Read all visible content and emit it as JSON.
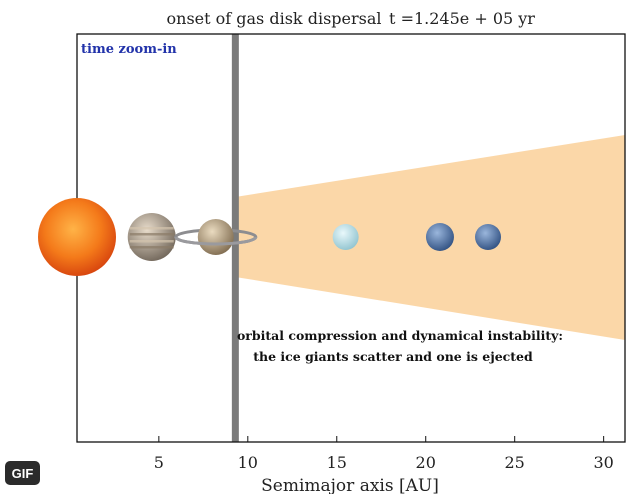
{
  "header": {
    "title_left": "onset of gas disk dispersal",
    "title_right": "t =1.245e + 05 yr"
  },
  "badge": {
    "label": "GIF"
  },
  "panel": {
    "zoom_label": "time zoom-in"
  },
  "annotation": {
    "line1": "orbital compression and dynamical instability:",
    "line2": "the ice giants scatter and one is ejected"
  },
  "chart_data": {
    "type": "scatter",
    "xlabel": "Semimajor axis [AU]",
    "xlim": [
      0.4,
      31.2
    ],
    "xticks": [
      5,
      10,
      15,
      20,
      25,
      30
    ],
    "xtick_labels": [
      "5",
      "10",
      "15",
      "20",
      "25",
      "30"
    ],
    "grid": false,
    "bodies": [
      {
        "name": "Sun",
        "x": 0.4,
        "color": "#f06a10"
      },
      {
        "name": "Jupiter",
        "x": 4.6,
        "color": "#b8a48c"
      },
      {
        "name": "Saturn",
        "x": 8.2,
        "color": "#c9ad86"
      },
      {
        "name": "Uranus",
        "x": 15.5,
        "color": "#bfe3ea"
      },
      {
        "name": "Neptune",
        "x": 20.8,
        "color": "#5b7fb0"
      },
      {
        "name": "Ice giant",
        "x": 23.5,
        "color": "#5a78a8"
      }
    ],
    "gap_edge_x": 9.3,
    "disk": {
      "x_start": 9.3,
      "x_end": 31.2,
      "color": "#fbd5a3"
    }
  }
}
